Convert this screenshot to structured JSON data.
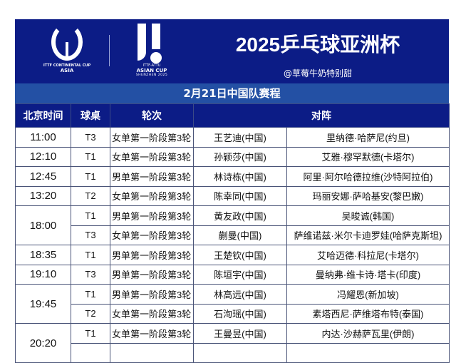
{
  "header": {
    "logo_left": {
      "line1": "ITTF CONTINENTAL CUP",
      "line2": "ASIA"
    },
    "logo_right": {
      "line1": "ITTF-ATTU",
      "line2": "ASIAN CUP",
      "line3": "SHENZHEN 2025"
    },
    "title": "2025乒乓球亚洲杯",
    "handle": "@草莓牛奶特别甜",
    "colors": {
      "navy": "#0c1c86",
      "band": "#2350a4"
    }
  },
  "subtitle": "2月21日中国队赛程",
  "columns": [
    "北京时间",
    "球桌",
    "轮次",
    "对阵"
  ],
  "rows": [
    {
      "time": "11:00",
      "table": "T3",
      "round": "女单第一阶段第3轮",
      "player": "王艺迪(中国)",
      "opponent": "里纳德·哈萨尼(约旦)"
    },
    {
      "time": "12:10",
      "table": "T1",
      "round": "女单第一阶段第3轮",
      "player": "孙颖莎(中国)",
      "opponent": "艾雅·穆罕默德(卡塔尔)"
    },
    {
      "time": "12:45",
      "table": "T1",
      "round": "男单第一阶段第3轮",
      "player": "林诗栋(中国)",
      "opponent": "阿里·阿尔哈德拉维(沙特阿拉伯)"
    },
    {
      "time": "13:20",
      "table": "T2",
      "round": "女单第一阶段第3轮",
      "player": "陈幸同(中国)",
      "opponent": "玛丽安娜·萨哈基安(黎巴嫩)"
    },
    {
      "time": "18:00",
      "table": "T1",
      "round": "男单第一阶段第3轮",
      "player": "黄友政(中国)",
      "opponent": "吴晙诚(韩国)"
    },
    {
      "time": "",
      "table": "T3",
      "round": "女单第一阶段第3轮",
      "player": "蒯曼(中国)",
      "opponent": "萨维诺兹·米尔卡迪罗娃(哈萨克斯坦)"
    },
    {
      "time": "18:35",
      "table": "T1",
      "round": "男单第一阶段第3轮",
      "player": "王楚钦(中国)",
      "opponent": "艾哈迈德·科拉尼(卡塔尔)"
    },
    {
      "time": "19:10",
      "table": "T3",
      "round": "男单第一阶段第3轮",
      "player": "陈垣宇(中国)",
      "opponent": "曼纳弗·维卡诗·塔卡(印度)"
    },
    {
      "time": "19:45",
      "table": "T1",
      "round": "男单第一阶段第3轮",
      "player": "林高远(中国)",
      "opponent": "冯耀恩(新加坡)"
    },
    {
      "time": "",
      "table": "T2",
      "round": "女单第一阶段第3轮",
      "player": "石洵瑶(中国)",
      "opponent": "素塔西尼·萨维塔布特(泰国)"
    },
    {
      "time": "20:20",
      "table": "T1",
      "round": "女单第一阶段第3轮",
      "player": "王曼昱(中国)",
      "opponent": "内达·沙赫萨瓦里(伊朗)"
    }
  ]
}
